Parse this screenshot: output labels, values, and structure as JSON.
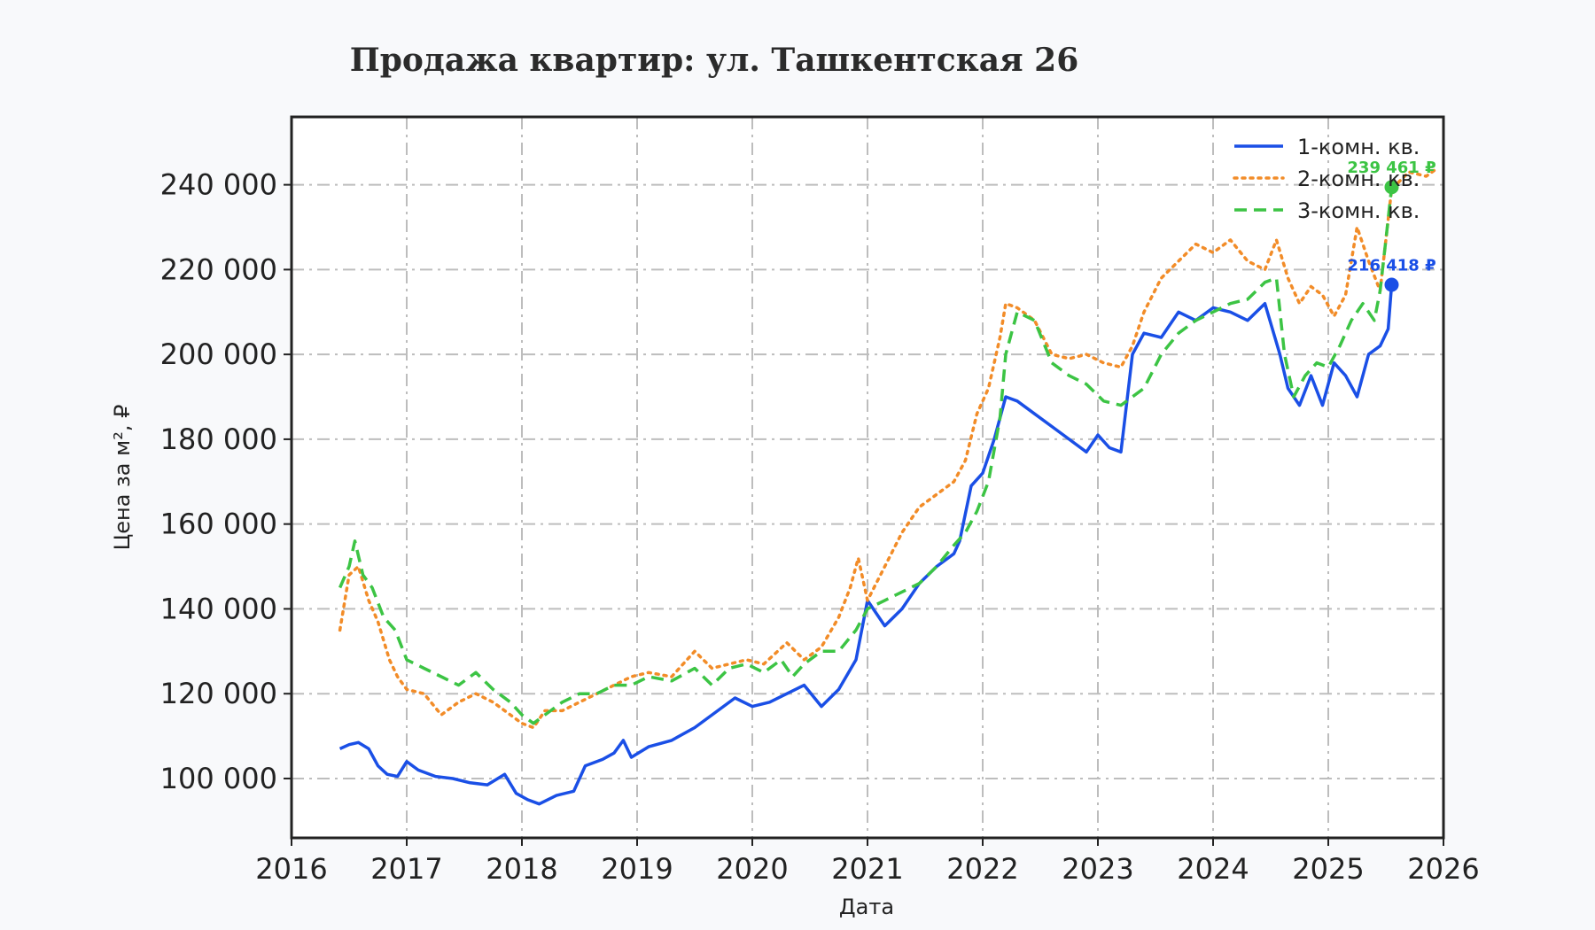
{
  "chart_data": {
    "type": "line",
    "title": "Продажа квартир: ул. Ташкентская 26",
    "xlabel": "Дата",
    "ylabel": "Цена за м², ₽",
    "xlim": [
      2016.0,
      2026.0
    ],
    "ylim": [
      86000,
      256000
    ],
    "x_ticks": [
      "2016",
      "2017",
      "2018",
      "2019",
      "2020",
      "2021",
      "2022",
      "2023",
      "2024",
      "2025",
      "2026"
    ],
    "y_ticks": [
      "100 000",
      "120 000",
      "140 000",
      "160 000",
      "180 000",
      "200 000",
      "220 000",
      "240 000"
    ],
    "y_tick_values": [
      100000,
      120000,
      140000,
      160000,
      180000,
      200000,
      220000,
      240000
    ],
    "grid": true,
    "legend_position": "top-right",
    "series": [
      {
        "name": "1-комн. кв.",
        "color": "#1a4fe6",
        "style": "solid",
        "x": [
          2016.42,
          2016.5,
          2016.58,
          2016.67,
          2016.75,
          2016.83,
          2016.92,
          2017.0,
          2017.1,
          2017.25,
          2017.4,
          2017.55,
          2017.7,
          2017.85,
          2017.95,
          2018.05,
          2018.15,
          2018.3,
          2018.45,
          2018.55,
          2018.7,
          2018.8,
          2018.88,
          2018.95,
          2019.1,
          2019.3,
          2019.5,
          2019.7,
          2019.85,
          2020.0,
          2020.15,
          2020.3,
          2020.45,
          2020.6,
          2020.75,
          2020.9,
          2021.0,
          2021.15,
          2021.3,
          2021.45,
          2021.6,
          2021.75,
          2021.8,
          2021.9,
          2022.0,
          2022.1,
          2022.2,
          2022.3,
          2022.45,
          2022.6,
          2022.75,
          2022.9,
          2023.0,
          2023.1,
          2023.2,
          2023.3,
          2023.4,
          2023.55,
          2023.7,
          2023.85,
          2024.0,
          2024.15,
          2024.3,
          2024.45,
          2024.58,
          2024.65,
          2024.75,
          2024.85,
          2024.95,
          2025.05,
          2025.15,
          2025.25,
          2025.35,
          2025.45,
          2025.52,
          2025.55
        ],
        "values": [
          107000,
          108000,
          108500,
          107000,
          103000,
          101000,
          100500,
          104000,
          102000,
          100500,
          100000,
          99000,
          98500,
          101000,
          96500,
          95000,
          94000,
          96000,
          97000,
          103000,
          104500,
          106000,
          109000,
          105000,
          107500,
          109000,
          112000,
          116000,
          119000,
          117000,
          118000,
          120000,
          122000,
          117000,
          121000,
          128000,
          142000,
          136000,
          140000,
          146000,
          150000,
          153000,
          156000,
          169000,
          172000,
          180000,
          190000,
          189000,
          186000,
          183000,
          180000,
          177000,
          181000,
          178000,
          177000,
          200000,
          205000,
          204000,
          210000,
          208000,
          211000,
          210000,
          208000,
          212000,
          200000,
          192000,
          188000,
          195000,
          188000,
          198000,
          195000,
          190000,
          200000,
          202000,
          206000,
          216418
        ],
        "end_label": "216 418 ₽"
      },
      {
        "name": "2-комн. кв.",
        "color": "#f28c28",
        "style": "dotted",
        "x": [
          2016.42,
          2016.5,
          2016.58,
          2016.67,
          2016.75,
          2016.85,
          2016.92,
          2017.0,
          2017.15,
          2017.3,
          2017.45,
          2017.6,
          2017.75,
          2017.9,
          2018.0,
          2018.1,
          2018.2,
          2018.35,
          2018.5,
          2018.65,
          2018.8,
          2018.95,
          2019.1,
          2019.3,
          2019.5,
          2019.65,
          2019.8,
          2019.95,
          2020.1,
          2020.3,
          2020.45,
          2020.6,
          2020.75,
          2020.85,
          2020.92,
          2021.0,
          2021.15,
          2021.3,
          2021.45,
          2021.6,
          2021.75,
          2021.85,
          2021.95,
          2022.05,
          2022.15,
          2022.2,
          2022.3,
          2022.45,
          2022.6,
          2022.75,
          2022.9,
          2023.05,
          2023.2,
          2023.3,
          2023.4,
          2023.55,
          2023.7,
          2023.85,
          2024.0,
          2024.15,
          2024.3,
          2024.45,
          2024.55,
          2024.65,
          2024.75,
          2024.85,
          2024.95,
          2025.05,
          2025.15,
          2025.25,
          2025.35,
          2025.45,
          2025.55,
          2025.7,
          2025.85,
          2025.95
        ],
        "values": [
          135000,
          148000,
          150000,
          142000,
          137000,
          128000,
          124000,
          121000,
          120000,
          115000,
          118000,
          120000,
          118000,
          115000,
          113000,
          112000,
          116000,
          116000,
          118000,
          120000,
          122000,
          124000,
          125000,
          124000,
          130000,
          126000,
          127000,
          128000,
          127000,
          132000,
          128000,
          131000,
          138000,
          145000,
          152000,
          142000,
          150000,
          158000,
          164000,
          167000,
          170000,
          175000,
          186000,
          192000,
          204000,
          212000,
          211000,
          208000,
          200000,
          199000,
          200000,
          198000,
          197000,
          202000,
          210000,
          218000,
          222000,
          226000,
          224000,
          227000,
          222000,
          220000,
          227000,
          218000,
          212000,
          216000,
          214000,
          209000,
          214000,
          230000,
          222000,
          215000,
          239000,
          243000,
          242000,
          244000
        ]
      },
      {
        "name": "3-комн. кв.",
        "color": "#3cc444",
        "style": "dashed",
        "x": [
          2016.42,
          2016.5,
          2016.55,
          2016.62,
          2016.7,
          2016.8,
          2016.9,
          2017.0,
          2017.15,
          2017.3,
          2017.45,
          2017.6,
          2017.75,
          2017.9,
          2018.0,
          2018.1,
          2018.2,
          2018.35,
          2018.5,
          2018.65,
          2018.8,
          2018.95,
          2019.1,
          2019.3,
          2019.5,
          2019.65,
          2019.8,
          2019.95,
          2020.1,
          2020.25,
          2020.35,
          2020.45,
          2020.6,
          2020.75,
          2020.9,
          2021.0,
          2021.15,
          2021.3,
          2021.45,
          2021.6,
          2021.75,
          2021.85,
          2021.95,
          2022.05,
          2022.15,
          2022.2,
          2022.3,
          2022.45,
          2022.6,
          2022.75,
          2022.9,
          2023.05,
          2023.2,
          2023.3,
          2023.4,
          2023.55,
          2023.7,
          2023.85,
          2024.0,
          2024.15,
          2024.3,
          2024.45,
          2024.55,
          2024.62,
          2024.7,
          2024.8,
          2024.9,
          2025.0,
          2025.1,
          2025.2,
          2025.3,
          2025.4,
          2025.45,
          2025.5,
          2025.55
        ],
        "values": [
          145000,
          150000,
          156000,
          148000,
          145000,
          138000,
          135000,
          128000,
          126000,
          124000,
          122000,
          125000,
          121000,
          118000,
          115000,
          113000,
          115000,
          118000,
          120000,
          120000,
          122000,
          122000,
          124000,
          123000,
          126000,
          122000,
          126000,
          127000,
          125000,
          128000,
          124000,
          127000,
          130000,
          130000,
          135000,
          140000,
          142000,
          144000,
          146000,
          150000,
          155000,
          158000,
          163000,
          170000,
          185000,
          200000,
          210000,
          208000,
          198000,
          195000,
          193000,
          189000,
          188000,
          190000,
          192000,
          200000,
          205000,
          208000,
          210000,
          212000,
          213000,
          217000,
          218000,
          200000,
          190000,
          195000,
          198000,
          197000,
          202000,
          208000,
          212000,
          208000,
          215000,
          227000,
          239461
        ],
        "end_label": "239 461 ₽"
      }
    ]
  }
}
